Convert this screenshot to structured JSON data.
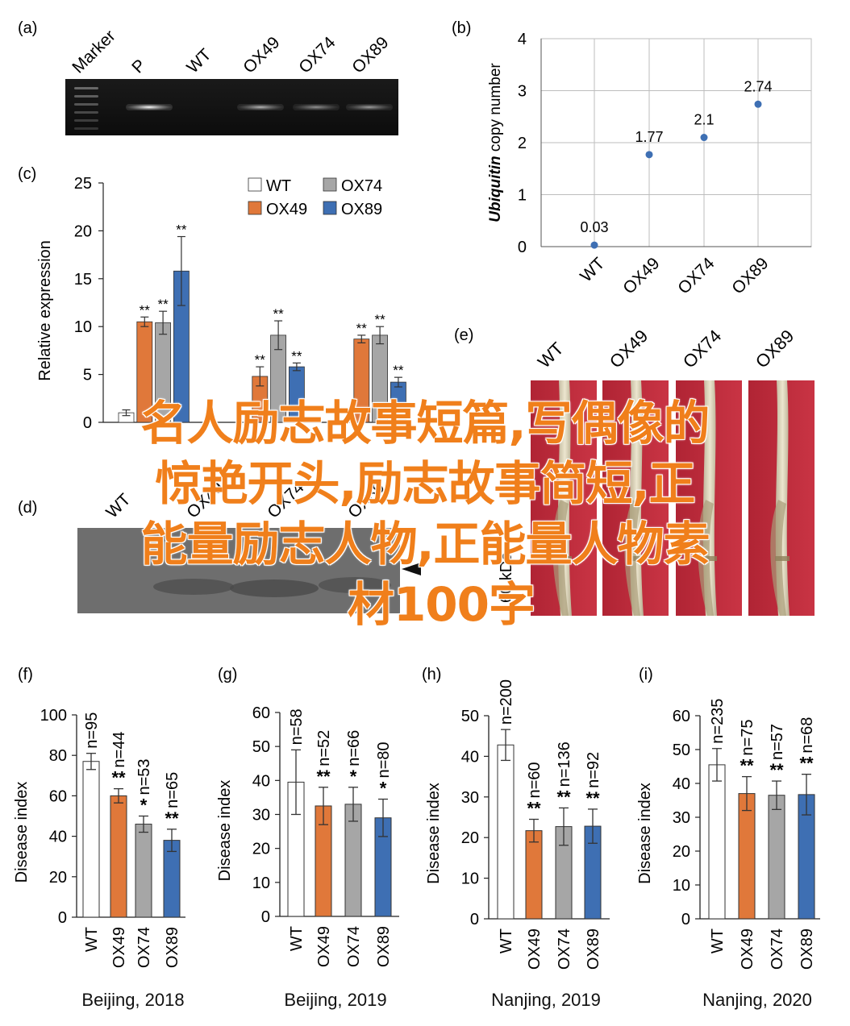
{
  "panels": {
    "a": {
      "letter": "(a)",
      "lanes": [
        "Marker",
        "P",
        "WT",
        "OX49",
        "OX74",
        "OX89"
      ],
      "band_intensity": [
        0,
        1.0,
        0.0,
        0.7,
        0.55,
        0.6
      ]
    },
    "d": {
      "letter": "(d)",
      "lanes": [
        "WT",
        "OX49",
        "OX74",
        "OX89"
      ],
      "size_label": "60 kDa"
    },
    "e": {
      "letter": "(e)",
      "labels": [
        "WT",
        "OX49",
        "OX74",
        "OX89"
      ]
    }
  },
  "chart_data": [
    {
      "id": "b",
      "letter": "(b)",
      "type": "scatter",
      "categories": [
        "WT",
        "OX49",
        "OX74",
        "OX89"
      ],
      "values": [
        0.03,
        1.77,
        2.1,
        2.74
      ],
      "value_labels": [
        "0.03",
        "1.77",
        "2.1",
        "2.74"
      ],
      "ylabel_italic": "Ubiquitin",
      "ylabel_rest": " copy number",
      "ylim": [
        0,
        4
      ],
      "yticks": [
        "0",
        "1",
        "2",
        "3",
        "4"
      ],
      "grid": true,
      "color": "#3e6fb3"
    },
    {
      "id": "c",
      "letter": "(c)",
      "type": "bar",
      "groups": [
        "1",
        "2",
        "3"
      ],
      "ylabel": "Relative expression",
      "ylim": [
        0,
        25
      ],
      "yticks": [
        "0",
        "5",
        "10",
        "15",
        "20",
        "25"
      ],
      "legend": [
        "WT",
        "OX74",
        "OX49",
        "OX89"
      ],
      "legend_position": "top-right",
      "series": [
        {
          "name": "WT",
          "color": "#ffffff",
          "values": [
            1.0,
            0,
            0
          ],
          "errors": [
            0.3,
            0,
            0
          ],
          "sig": [
            "",
            "",
            ""
          ]
        },
        {
          "name": "OX49",
          "color": "#e0783a",
          "values": [
            10.5,
            4.8,
            8.7
          ],
          "errors": [
            0.5,
            1.0,
            0.4
          ],
          "sig": [
            "**",
            "**",
            "**"
          ]
        },
        {
          "name": "OX74",
          "color": "#a6a6a6",
          "values": [
            10.4,
            9.1,
            9.1
          ],
          "errors": [
            1.2,
            1.5,
            0.9
          ],
          "sig": [
            "**",
            "**",
            "**"
          ]
        },
        {
          "name": "OX89",
          "color": "#3e6fb3",
          "values": [
            15.8,
            5.8,
            4.2
          ],
          "errors": [
            3.6,
            0.4,
            0.5
          ],
          "sig": [
            "**",
            "**",
            "**"
          ]
        }
      ]
    },
    {
      "id": "f",
      "letter": "(f)",
      "type": "bar",
      "categories": [
        "WT",
        "OX49",
        "OX74",
        "OX89"
      ],
      "values": [
        77,
        60,
        46,
        38
      ],
      "errors": [
        4,
        3.5,
        4,
        5.5
      ],
      "n_labels": [
        "n=95",
        "n=44",
        "n=53",
        "n=65"
      ],
      "sig": [
        "",
        "**",
        "*",
        "**"
      ],
      "ylabel": "Disease index",
      "ylim": [
        0,
        100
      ],
      "yticks": [
        "0",
        "20",
        "40",
        "60",
        "80",
        "100"
      ],
      "caption": "Beijing, 2018"
    },
    {
      "id": "g",
      "letter": "(g)",
      "type": "bar",
      "categories": [
        "WT",
        "OX49",
        "OX74",
        "OX89"
      ],
      "values": [
        39.5,
        32.5,
        33,
        29
      ],
      "errors": [
        9.5,
        5.5,
        5,
        5.5
      ],
      "n_labels": [
        "n=58",
        "n=52",
        "n=66",
        "n=80"
      ],
      "sig": [
        "",
        "**",
        "*",
        "*"
      ],
      "ylabel": "Disease index",
      "ylim": [
        0,
        60
      ],
      "yticks": [
        "0",
        "10",
        "20",
        "30",
        "40",
        "50",
        "60"
      ],
      "caption": "Beijing, 2019"
    },
    {
      "id": "h",
      "letter": "(h)",
      "type": "bar",
      "categories": [
        "WT",
        "OX49",
        "OX74",
        "OX89"
      ],
      "values": [
        42.8,
        21.7,
        22.7,
        22.8
      ],
      "errors": [
        3.8,
        2.8,
        4.6,
        4.2
      ],
      "n_labels": [
        "n=200",
        "n=60",
        "n=136",
        "n=92"
      ],
      "sig": [
        "",
        "**",
        "**",
        "**"
      ],
      "ylabel": "Disease index",
      "ylim": [
        0,
        50
      ],
      "yticks": [
        "0",
        "10",
        "20",
        "30",
        "40",
        "50"
      ],
      "caption": "Nanjing, 2019"
    },
    {
      "id": "i",
      "letter": "(i)",
      "type": "bar",
      "categories": [
        "WT",
        "OX49",
        "OX74",
        "OX89"
      ],
      "values": [
        45.5,
        37,
        36.5,
        36.7
      ],
      "errors": [
        4.8,
        5,
        4.2,
        6
      ],
      "n_labels": [
        "n=235",
        "n=75",
        "n=57",
        "n=68"
      ],
      "sig": [
        "",
        "**",
        "**",
        "**"
      ],
      "ylabel": "Disease index",
      "ylim": [
        0,
        60
      ],
      "yticks": [
        "0",
        "10",
        "20",
        "30",
        "40",
        "50",
        "60"
      ],
      "caption": "Nanjing, 2020"
    }
  ],
  "bar_colors": [
    "#ffffff",
    "#e0783a",
    "#a6a6a6",
    "#3e6fb3"
  ],
  "overlay": {
    "lines": [
      "名人励志故事短篇,写偶像的",
      "惊艳开头,励志故事简短,正",
      "能量励志人物,正能量人物素",
      "材100字"
    ],
    "color": "#f07f1b"
  }
}
